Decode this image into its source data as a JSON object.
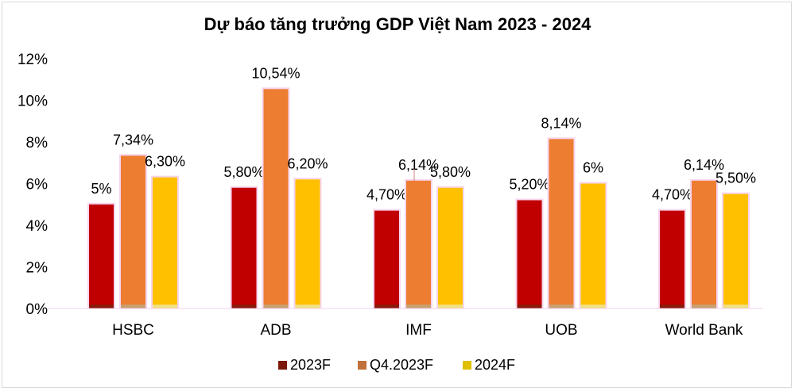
{
  "chart_data": {
    "type": "bar",
    "title": "Dự báo tăng trưởng GDP Việt Nam 2023 - 2024",
    "categories": [
      "HSBC",
      "ADB",
      "IMF",
      "UOB",
      "World Bank"
    ],
    "series": [
      {
        "name": "2023F",
        "color": "#c00000",
        "values": [
          5.0,
          5.8,
          4.7,
          5.2,
          4.7
        ],
        "labels": [
          "5%",
          "5,80%",
          "4,70%",
          "5,20%",
          "4,70%"
        ]
      },
      {
        "name": "Q4.2023F",
        "color": "#ed7d31",
        "values": [
          7.34,
          10.54,
          6.14,
          8.14,
          6.14
        ],
        "labels": [
          "7,34%",
          "10,54%",
          "6,14%",
          "8,14%",
          "6,14%"
        ]
      },
      {
        "name": "2024F",
        "color": "#ffc000",
        "values": [
          6.3,
          6.2,
          5.8,
          6.0,
          5.5
        ],
        "labels": [
          "6,30%",
          "6,20%",
          "5,80%",
          "6%",
          "5,50%"
        ]
      }
    ],
    "ylim": [
      0,
      12
    ],
    "yticks": [
      0,
      2,
      4,
      6,
      8,
      10,
      12
    ],
    "ytick_labels": [
      "0%",
      "2%",
      "4%",
      "6%",
      "8%",
      "10%",
      "12%"
    ],
    "legend": {
      "placement": "bottom",
      "marker_colors": [
        "#7b1a0a",
        "#c0703a",
        "#e0c000"
      ]
    },
    "grid": false
  }
}
